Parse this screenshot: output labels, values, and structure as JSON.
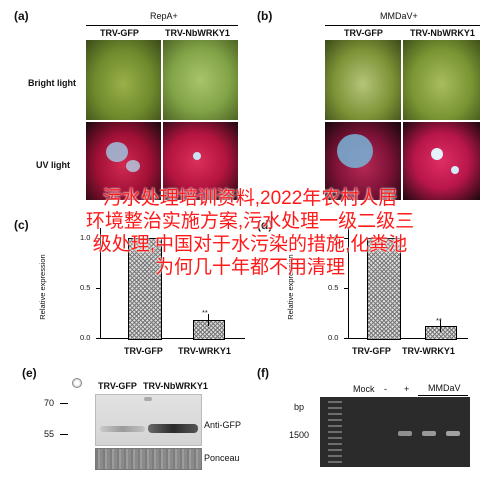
{
  "panel_a": {
    "label": "(a)",
    "title": "RepA+",
    "col1": "TRV-GFP",
    "col2": "TRV-NbWRKY1",
    "row1": "Bright light",
    "row2": "UV light"
  },
  "panel_b": {
    "label": "(b)",
    "title": "MMDaV+",
    "col1": "TRV-GFP",
    "col2": "TRV-NbWRKY1"
  },
  "panel_c": {
    "label": "(c)",
    "ylabel": "Relative expression",
    "yticks": [
      "0.0",
      "0.5",
      "1.0"
    ],
    "x1": "TRV-GFP",
    "x2": "TRV-WRKY1",
    "sig": "**"
  },
  "panel_d": {
    "label": "(d)",
    "ylabel": "Relative expression",
    "yticks": [
      "0.0",
      "0.5",
      "1.0"
    ],
    "x1": "TRV-GFP",
    "x2": "TRV-WRKY1",
    "sig": "**"
  },
  "panel_e": {
    "label": "(e)",
    "col1": "TRV-GFP",
    "col2": "TRV-NbWRKY1",
    "mw70": "70",
    "mw55": "55",
    "row1": "Anti-GFP",
    "row2": "Ponceau"
  },
  "panel_f": {
    "label": "(f)",
    "bp": "bp",
    "mw": "1500",
    "lanes": [
      "Mock",
      "-",
      "+"
    ],
    "group": "MMDaV"
  },
  "chart_data": [
    {
      "type": "bar",
      "title": "",
      "xlabel": "",
      "ylabel": "Relative expression",
      "categories": [
        "TRV-GFP",
        "TRV-WRKY1"
      ],
      "values": [
        1.0,
        0.18
      ],
      "ylim": [
        0,
        1.1
      ],
      "annotations": [
        "**"
      ]
    },
    {
      "type": "bar",
      "title": "",
      "xlabel": "",
      "ylabel": "Relative expression",
      "categories": [
        "TRV-GFP",
        "TRV-WRKY1"
      ],
      "values": [
        1.0,
        0.12
      ],
      "ylim": [
        0,
        1.1
      ],
      "annotations": [
        "**"
      ]
    }
  ],
  "overlay": {
    "line1": "污水处理培训资料,2022年农村人居",
    "line2": "环境整治实施方案,污水处理一级二级三",
    "line3": "级处理,中国对于水污染的措施,化粪池",
    "line4": "为何几十年都不用清理"
  },
  "colors": {
    "overlay_text": "#ff1a1a",
    "bar_fill": "#dddddd"
  }
}
